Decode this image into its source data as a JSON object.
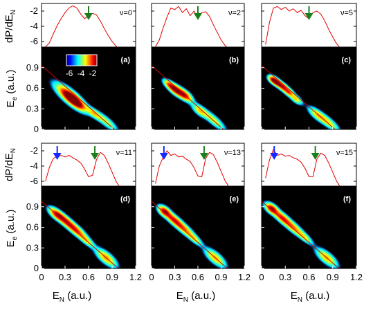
{
  "figure": {
    "ylabel_top": "dP/dE",
    "ylabel_top_sub": "N",
    "ylabel_map": "E",
    "ylabel_map_sub": "e",
    "ylabel_map_unit": " (a.u.)",
    "xlabel": "E",
    "xlabel_sub": "N",
    "xlabel_unit": " (a.u.)",
    "colorbar_ticks": [
      "-6",
      "-4",
      "-2"
    ],
    "colorbar_range": [
      -7,
      -1
    ]
  },
  "chart_data": [
    {
      "type": "line",
      "panel": "(a)",
      "nu_label": "ν=0",
      "xlim": [
        0,
        1.2
      ],
      "ylim": [
        -7,
        -1
      ],
      "yticks": [
        -2,
        -4,
        -6
      ],
      "x": [
        0.05,
        0.1,
        0.15,
        0.2,
        0.25,
        0.3,
        0.35,
        0.4,
        0.45,
        0.5,
        0.55,
        0.6,
        0.65,
        0.7,
        0.75,
        0.8,
        0.85,
        0.9,
        0.95,
        1.0,
        1.05
      ],
      "values": [
        -6.7,
        -6.2,
        -5.0,
        -3.9,
        -3.0,
        -2.2,
        -1.6,
        -1.3,
        -1.6,
        -2.4,
        -3.0,
        -2.6,
        -2.3,
        -2.5,
        -3.3,
        -4.3,
        -5.2,
        -6.0,
        -6.6,
        -7.0,
        -7.0
      ],
      "markers": [
        {
          "type": "green-arrow",
          "x": 0.6
        }
      ],
      "map": {
        "xticks": [
          0,
          0.3,
          0.6,
          0.9,
          1.2
        ],
        "yticks": [
          0,
          0.3,
          0.6,
          0.9
        ],
        "xlim": [
          0,
          1.2
        ],
        "ylim": [
          0,
          1.2
        ],
        "ridge_line": {
          "x0": 0.0,
          "y0": 0.93,
          "x1": 1.2,
          "y1": -0.27
        },
        "blobs": [
          {
            "x": 0.36,
            "y": 0.48,
            "sx": 0.1,
            "sy": 0.07,
            "amp": 1.0
          },
          {
            "x": 0.42,
            "y": 0.42,
            "sx": 0.07,
            "sy": 0.05,
            "amp": 0.9
          },
          {
            "x": 0.66,
            "y": 0.24,
            "sx": 0.05,
            "sy": 0.04,
            "amp": 0.5
          },
          {
            "x": 0.82,
            "y": 0.12,
            "sx": 0.08,
            "sy": 0.05,
            "amp": 0.45
          }
        ]
      }
    },
    {
      "type": "line",
      "panel": "(b)",
      "nu_label": "ν=2",
      "xlim": [
        0,
        1.2
      ],
      "ylim": [
        -7,
        -1
      ],
      "x": [
        0.05,
        0.1,
        0.15,
        0.2,
        0.25,
        0.3,
        0.35,
        0.4,
        0.45,
        0.5,
        0.55,
        0.6,
        0.65,
        0.7,
        0.75,
        0.8,
        0.85,
        0.9,
        0.95,
        1.0,
        1.05
      ],
      "values": [
        -6.7,
        -5.8,
        -4.2,
        -2.8,
        -1.6,
        -1.8,
        -1.4,
        -2.2,
        -1.7,
        -2.6,
        -2.0,
        -3.0,
        -2.2,
        -2.1,
        -2.7,
        -3.8,
        -4.8,
        -5.8,
        -6.5,
        -7.0,
        -7.0
      ],
      "markers": [
        {
          "type": "green-arrow",
          "x": 0.6
        }
      ],
      "map": {
        "ridge_line": {
          "x0": 0.0,
          "y0": 0.93,
          "x1": 1.2,
          "y1": -0.27
        },
        "blobs": [
          {
            "x": 0.22,
            "y": 0.66,
            "sx": 0.04,
            "sy": 0.04,
            "amp": 0.6
          },
          {
            "x": 0.31,
            "y": 0.58,
            "sx": 0.05,
            "sy": 0.05,
            "amp": 1.0
          },
          {
            "x": 0.43,
            "y": 0.5,
            "sx": 0.05,
            "sy": 0.05,
            "amp": 0.9
          },
          {
            "x": 0.62,
            "y": 0.28,
            "sx": 0.05,
            "sy": 0.05,
            "amp": 0.55
          },
          {
            "x": 0.8,
            "y": 0.14,
            "sx": 0.08,
            "sy": 0.05,
            "amp": 0.5
          }
        ]
      }
    },
    {
      "type": "line",
      "panel": "(c)",
      "nu_label": "ν=5",
      "xlim": [
        0,
        1.2
      ],
      "ylim": [
        -7,
        -1
      ],
      "x": [
        0.05,
        0.1,
        0.15,
        0.2,
        0.25,
        0.3,
        0.35,
        0.4,
        0.45,
        0.5,
        0.55,
        0.6,
        0.65,
        0.7,
        0.75,
        0.8,
        0.85,
        0.9,
        0.95,
        1.0,
        1.05
      ],
      "values": [
        -6.4,
        -3.5,
        -1.6,
        -1.4,
        -1.8,
        -1.5,
        -2.0,
        -1.7,
        -2.2,
        -1.9,
        -2.6,
        -3.0,
        -2.2,
        -2.0,
        -2.4,
        -3.3,
        -4.4,
        -5.4,
        -6.3,
        -6.9,
        -7.0
      ],
      "markers": [
        {
          "type": "green-arrow",
          "x": 0.6
        }
      ],
      "map": {
        "ridge_line": {
          "x0": 0.0,
          "y0": 0.93,
          "x1": 1.2,
          "y1": -0.27
        },
        "blobs": [
          {
            "x": 0.14,
            "y": 0.73,
            "sx": 0.03,
            "sy": 0.04,
            "amp": 1.0
          },
          {
            "x": 0.2,
            "y": 0.68,
            "sx": 0.03,
            "sy": 0.04,
            "amp": 0.9
          },
          {
            "x": 0.27,
            "y": 0.62,
            "sx": 0.03,
            "sy": 0.04,
            "amp": 0.85
          },
          {
            "x": 0.34,
            "y": 0.55,
            "sx": 0.03,
            "sy": 0.04,
            "amp": 0.75
          },
          {
            "x": 0.43,
            "y": 0.45,
            "sx": 0.04,
            "sy": 0.04,
            "amp": 0.6
          },
          {
            "x": 0.7,
            "y": 0.22,
            "sx": 0.06,
            "sy": 0.05,
            "amp": 0.55
          },
          {
            "x": 0.85,
            "y": 0.1,
            "sx": 0.07,
            "sy": 0.05,
            "amp": 0.5
          }
        ]
      }
    },
    {
      "type": "line",
      "panel": "(d)",
      "nu_label": "ν=11",
      "xlim": [
        0,
        1.2
      ],
      "ylim": [
        -7,
        -1
      ],
      "x": [
        0.05,
        0.1,
        0.15,
        0.2,
        0.25,
        0.3,
        0.35,
        0.4,
        0.45,
        0.5,
        0.55,
        0.6,
        0.65,
        0.7,
        0.75,
        0.8,
        0.85,
        0.9,
        0.95,
        1.0,
        1.05
      ],
      "values": [
        -6.0,
        -4.2,
        -3.0,
        -2.7,
        -2.6,
        -2.8,
        -2.6,
        -2.9,
        -3.2,
        -3.6,
        -4.4,
        -5.4,
        -5.2,
        -3.2,
        -2.2,
        -2.6,
        -3.6,
        -4.8,
        -6.0,
        -6.8,
        -7.0
      ],
      "markers": [
        {
          "type": "blue-arrow",
          "x": 0.2
        },
        {
          "type": "green-arrow",
          "x": 0.68
        }
      ],
      "map": {
        "ridge_line": {
          "x0": 0.0,
          "y0": 0.98,
          "x1": 1.2,
          "y1": -0.22
        },
        "blobs": [
          {
            "x": 0.18,
            "y": 0.8,
            "sx": 0.05,
            "sy": 0.05,
            "amp": 0.75
          },
          {
            "x": 0.3,
            "y": 0.7,
            "sx": 0.07,
            "sy": 0.05,
            "amp": 0.85
          },
          {
            "x": 0.45,
            "y": 0.55,
            "sx": 0.07,
            "sy": 0.05,
            "amp": 0.75
          },
          {
            "x": 0.58,
            "y": 0.4,
            "sx": 0.05,
            "sy": 0.04,
            "amp": 0.45
          },
          {
            "x": 0.82,
            "y": 0.16,
            "sx": 0.07,
            "sy": 0.06,
            "amp": 0.7
          }
        ]
      }
    },
    {
      "type": "line",
      "panel": "(e)",
      "nu_label": "ν=13",
      "xlim": [
        0,
        1.2
      ],
      "ylim": [
        -7,
        -1
      ],
      "x": [
        0.05,
        0.1,
        0.15,
        0.2,
        0.25,
        0.3,
        0.35,
        0.4,
        0.45,
        0.5,
        0.55,
        0.6,
        0.65,
        0.7,
        0.75,
        0.8,
        0.85,
        0.9,
        0.95,
        1.0,
        1.05
      ],
      "values": [
        -6.3,
        -4.0,
        -2.8,
        -2.0,
        -2.6,
        -2.4,
        -2.8,
        -2.7,
        -3.1,
        -3.4,
        -4.2,
        -5.3,
        -5.4,
        -3.0,
        -2.2,
        -2.5,
        -3.5,
        -4.7,
        -5.9,
        -6.7,
        -7.0
      ],
      "markers": [
        {
          "type": "blue-arrow",
          "x": 0.16
        },
        {
          "type": "green-arrow",
          "x": 0.68
        }
      ],
      "map": {
        "ridge_line": {
          "x0": 0.0,
          "y0": 0.98,
          "x1": 1.2,
          "y1": -0.22
        },
        "blobs": [
          {
            "x": 0.16,
            "y": 0.84,
            "sx": 0.04,
            "sy": 0.05,
            "amp": 0.95
          },
          {
            "x": 0.28,
            "y": 0.72,
            "sx": 0.06,
            "sy": 0.05,
            "amp": 0.8
          },
          {
            "x": 0.42,
            "y": 0.58,
            "sx": 0.07,
            "sy": 0.05,
            "amp": 0.7
          },
          {
            "x": 0.56,
            "y": 0.43,
            "sx": 0.05,
            "sy": 0.04,
            "amp": 0.45
          },
          {
            "x": 0.82,
            "y": 0.16,
            "sx": 0.07,
            "sy": 0.06,
            "amp": 0.65
          }
        ]
      }
    },
    {
      "type": "line",
      "panel": "(f)",
      "nu_label": "ν=15",
      "xlim": [
        0,
        1.2
      ],
      "ylim": [
        -7,
        -1
      ],
      "x": [
        0.05,
        0.1,
        0.15,
        0.2,
        0.25,
        0.3,
        0.35,
        0.4,
        0.45,
        0.5,
        0.55,
        0.6,
        0.65,
        0.7,
        0.75,
        0.8,
        0.85,
        0.9,
        0.95,
        1.0,
        1.05
      ],
      "values": [
        -5.6,
        -3.2,
        -1.8,
        -2.6,
        -2.4,
        -2.7,
        -2.6,
        -2.9,
        -3.1,
        -3.5,
        -4.3,
        -5.4,
        -5.4,
        -3.1,
        -2.3,
        -2.6,
        -3.6,
        -4.8,
        -6.0,
        -6.8,
        -7.0
      ],
      "markers": [
        {
          "type": "blue-arrow",
          "x": 0.16
        },
        {
          "type": "green-arrow",
          "x": 0.68
        }
      ],
      "map": {
        "ridge_line": {
          "x0": 0.0,
          "y0": 0.98,
          "x1": 1.2,
          "y1": -0.22
        },
        "blobs": [
          {
            "x": 0.12,
            "y": 0.88,
            "sx": 0.04,
            "sy": 0.05,
            "amp": 1.0
          },
          {
            "x": 0.25,
            "y": 0.75,
            "sx": 0.06,
            "sy": 0.05,
            "amp": 0.8
          },
          {
            "x": 0.4,
            "y": 0.6,
            "sx": 0.07,
            "sy": 0.05,
            "amp": 0.7
          },
          {
            "x": 0.55,
            "y": 0.45,
            "sx": 0.05,
            "sy": 0.04,
            "amp": 0.45
          },
          {
            "x": 0.82,
            "y": 0.16,
            "sx": 0.07,
            "sy": 0.06,
            "amp": 0.65
          }
        ]
      }
    }
  ]
}
